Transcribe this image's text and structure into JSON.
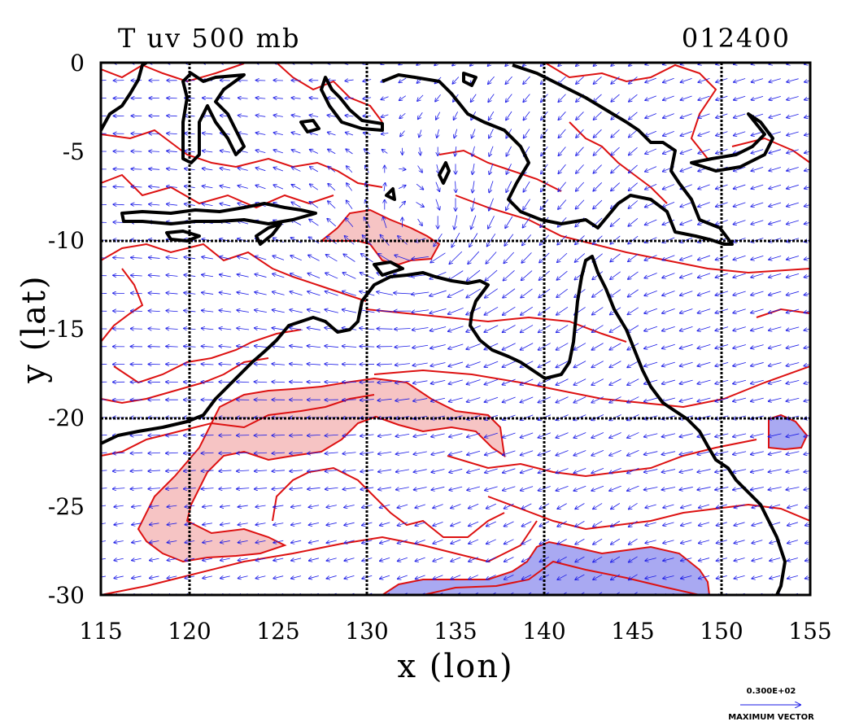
{
  "title_left": "T uv 500 mb",
  "title_right": "012400",
  "x_axis": {
    "label": "x (lon)",
    "ticks": [
      "115",
      "120",
      "125",
      "130",
      "135",
      "140",
      "145",
      "150",
      "155"
    ],
    "range": [
      115,
      155
    ]
  },
  "y_axis": {
    "label": "y (lat)",
    "ticks": [
      "0",
      "-5",
      "-10",
      "-15",
      "-20",
      "-25",
      "-30"
    ],
    "range": [
      -30,
      0
    ]
  },
  "vector_reference": {
    "value": "0.300E+02",
    "caption": "MAXIMUM VECTOR"
  },
  "colors": {
    "coast": "#000000",
    "contour": "#dd1111",
    "vector": "#1a1ae6",
    "warm_fill": "#f6c4c4",
    "cool_fill": "#a9a9f2",
    "grid": "#000000"
  },
  "map": {
    "projection": "lat-lon",
    "region": "Maritime Continent / Northern Australia",
    "gridlines_lon": [
      120,
      130,
      140,
      150
    ],
    "gridlines_lat": [
      -10,
      -20
    ],
    "vector_grid_spacing_deg": 1
  }
}
